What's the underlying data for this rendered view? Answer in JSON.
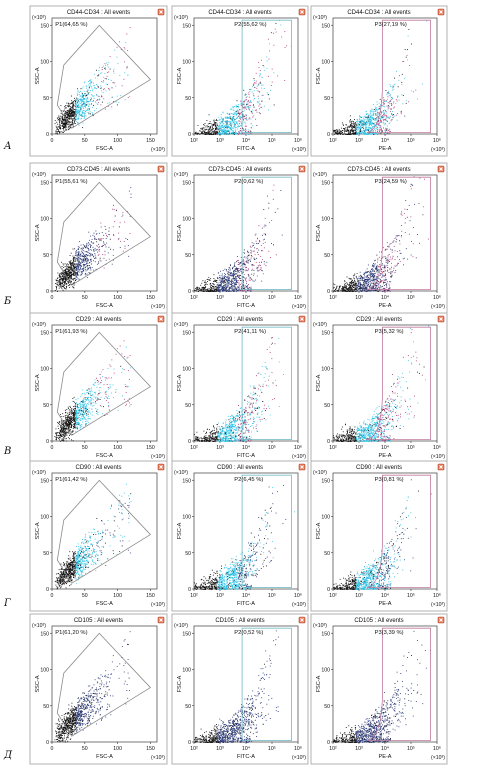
{
  "row_labels": [
    "А",
    "Б",
    "В",
    "Г",
    "Д"
  ],
  "close_icon": "close-icon",
  "colors": {
    "cyan": "#2fc4e8",
    "magenta": "#b23a78",
    "black": "#111111",
    "navy": "#2c3a7a",
    "gray": "#8c8c8c",
    "gate_cyan": "#6fb9c4",
    "gate_pink": "#c07a9c",
    "close_orange": "#e8795a"
  },
  "chart_data": [
    {
      "type": "scatter",
      "row": "А",
      "title": "CD44-CD34 : All events",
      "gate": "P1(64,65 %)",
      "xlabel": "FSC-A",
      "ylabel": "SSC-A",
      "x_exponent": "(×10³)",
      "y_exponent": "(×10³)",
      "xticks": [
        "0",
        "50",
        "100",
        "150"
      ],
      "yticks": [
        "0",
        "50",
        "100",
        "150"
      ],
      "xlim": [
        0,
        160
      ],
      "ylim": [
        0,
        160
      ],
      "scale": "linear",
      "gate_shape": "polygon",
      "scheme": "cyan_magenta"
    },
    {
      "type": "scatter",
      "row": "А",
      "title": "CD44-CD34 : All events",
      "gate": "P2(55,62 %)",
      "xlabel": "FITC-A",
      "ylabel": "FSC-A",
      "x_exponent": "(×10³)",
      "y_exponent": "(×10³)",
      "xticks": [
        "10²",
        "10³",
        "10⁴",
        "10⁵",
        "10⁶"
      ],
      "yticks": [
        "0",
        "50",
        "100",
        "150"
      ],
      "xlim": [
        2,
        6
      ],
      "ylim": [
        0,
        160
      ],
      "scale": "log",
      "gate_shape": "rect",
      "scheme": "cyan_magenta"
    },
    {
      "type": "scatter",
      "row": "А",
      "title": "CD44-CD34 : All events",
      "gate": "P3(27,19 %)",
      "xlabel": "PE-A",
      "ylabel": "FSC-A",
      "x_exponent": "(×10³)",
      "y_exponent": "(×10³)",
      "xticks": [
        "10²",
        "10³",
        "10⁴",
        "10⁵",
        "10⁶"
      ],
      "yticks": [
        "0",
        "50",
        "100",
        "150"
      ],
      "xlim": [
        2,
        6
      ],
      "ylim": [
        0,
        160
      ],
      "scale": "log",
      "gate_shape": "curve",
      "scheme": "cyan_magenta"
    },
    {
      "type": "scatter",
      "row": "Б",
      "title": "CD73-CD45 : All events",
      "gate": "P1(55,61 %)",
      "xlabel": "FSC-A",
      "ylabel": "SSC-A",
      "x_exponent": "(×10³)",
      "y_exponent": "(×10³)",
      "xticks": [
        "0",
        "50",
        "100",
        "150"
      ],
      "yticks": [
        "0",
        "50",
        "100",
        "150"
      ],
      "xlim": [
        0,
        160
      ],
      "ylim": [
        0,
        160
      ],
      "scale": "linear",
      "gate_shape": "polygon",
      "scheme": "magenta_navy"
    },
    {
      "type": "scatter",
      "row": "Б",
      "title": "CD73-CD45 : All events",
      "gate": "P2(0,62 %)",
      "xlabel": "FITC-A",
      "ylabel": "FSC-A",
      "x_exponent": "(×10³)",
      "y_exponent": "(×10³)",
      "xticks": [
        "10²",
        "10³",
        "10⁴",
        "10⁵",
        "10⁶"
      ],
      "yticks": [
        "0",
        "50",
        "100",
        "150"
      ],
      "xlim": [
        2,
        6
      ],
      "ylim": [
        0,
        160
      ],
      "scale": "log",
      "gate_shape": "rect",
      "scheme": "magenta_navy"
    },
    {
      "type": "scatter",
      "row": "Б",
      "title": "CD73-CD45 : All events",
      "gate": "P3(24,59 %)",
      "xlabel": "PE-A",
      "ylabel": "FSC-A",
      "x_exponent": "(×10³)",
      "y_exponent": "(×10³)",
      "xticks": [
        "10²",
        "10³",
        "10⁴",
        "10⁵",
        "10⁶"
      ],
      "yticks": [
        "0",
        "50",
        "100",
        "150"
      ],
      "xlim": [
        2,
        6
      ],
      "ylim": [
        0,
        160
      ],
      "scale": "log",
      "gate_shape": "curve",
      "scheme": "magenta_navy"
    },
    {
      "type": "scatter",
      "row": "В",
      "title": "CD29 : All events",
      "gate": "P1(61,93 %)",
      "xlabel": "FSC-A",
      "ylabel": "SSC-A",
      "x_exponent": "(×10³)",
      "y_exponent": "(×10³)",
      "xticks": [
        "0",
        "50",
        "100",
        "150"
      ],
      "yticks": [
        "0",
        "50",
        "100",
        "150"
      ],
      "xlim": [
        0,
        160
      ],
      "ylim": [
        0,
        160
      ],
      "scale": "linear",
      "gate_shape": "polygon",
      "scheme": "cyan_magenta"
    },
    {
      "type": "scatter",
      "row": "В",
      "title": "CD29 : All events",
      "gate": "P2(41,11 %)",
      "xlabel": "FITC-A",
      "ylabel": "FSC-A",
      "x_exponent": "(×10³)",
      "y_exponent": "(×10³)",
      "xticks": [
        "10²",
        "10³",
        "10⁴",
        "10⁵",
        "10⁶"
      ],
      "yticks": [
        "0",
        "50",
        "100",
        "150"
      ],
      "xlim": [
        2,
        6
      ],
      "ylim": [
        0,
        160
      ],
      "scale": "log",
      "gate_shape": "rect",
      "scheme": "cyan_magenta"
    },
    {
      "type": "scatter",
      "row": "В",
      "title": "CD29 : All events",
      "gate": "P3(5,32 %)",
      "xlabel": "PE-A",
      "ylabel": "FSC-A",
      "x_exponent": "(×10³)",
      "y_exponent": "(×10³)",
      "xticks": [
        "10²",
        "10³",
        "10⁴",
        "10⁵",
        "10⁶"
      ],
      "yticks": [
        "0",
        "50",
        "100",
        "150"
      ],
      "xlim": [
        2,
        6
      ],
      "ylim": [
        0,
        160
      ],
      "scale": "log",
      "gate_shape": "curve",
      "scheme": "cyan_magenta"
    },
    {
      "type": "scatter",
      "row": "Г",
      "title": "CD90 : All events",
      "gate": "P1(61,42 %)",
      "xlabel": "FSC-A",
      "ylabel": "SSC-A",
      "x_exponent": "(×10³)",
      "y_exponent": "(×10³)",
      "xticks": [
        "0",
        "50",
        "100",
        "150"
      ],
      "yticks": [
        "0",
        "50",
        "100",
        "150"
      ],
      "xlim": [
        0,
        160
      ],
      "ylim": [
        0,
        160
      ],
      "scale": "linear",
      "gate_shape": "polygon",
      "scheme": "cyan_navy"
    },
    {
      "type": "scatter",
      "row": "Г",
      "title": "CD90 : All events",
      "gate": "P2(6,45 %)",
      "xlabel": "FITC-A",
      "ylabel": "FSC-A",
      "x_exponent": "(×10³)",
      "y_exponent": "(×10³)",
      "xticks": [
        "10²",
        "10³",
        "10⁴",
        "10⁵",
        "10⁶"
      ],
      "yticks": [
        "0",
        "50",
        "100",
        "150"
      ],
      "xlim": [
        2,
        6
      ],
      "ylim": [
        0,
        160
      ],
      "scale": "log",
      "gate_shape": "rect",
      "scheme": "cyan_navy"
    },
    {
      "type": "scatter",
      "row": "Г",
      "title": "CD90 : All events",
      "gate": "P3(0,81 %)",
      "xlabel": "PE-A",
      "ylabel": "FSC-A",
      "x_exponent": "(×10³)",
      "y_exponent": "(×10³)",
      "xticks": [
        "10²",
        "10³",
        "10⁴",
        "10⁵",
        "10⁶"
      ],
      "yticks": [
        "0",
        "50",
        "100",
        "150"
      ],
      "xlim": [
        2,
        6
      ],
      "ylim": [
        0,
        160
      ],
      "scale": "log",
      "gate_shape": "curve",
      "scheme": "cyan_navy"
    },
    {
      "type": "scatter",
      "row": "Д",
      "title": "CD105 : All events",
      "gate": "P1(61,20 %)",
      "xlabel": "FSC-A",
      "ylabel": "SSC-A",
      "x_exponent": "(×10³)",
      "y_exponent": "(×10³)",
      "xticks": [
        "0",
        "50",
        "100",
        "150"
      ],
      "yticks": [
        "0",
        "50",
        "100",
        "150"
      ],
      "xlim": [
        0,
        160
      ],
      "ylim": [
        0,
        160
      ],
      "scale": "linear",
      "gate_shape": "polygon",
      "scheme": "navy_magenta"
    },
    {
      "type": "scatter",
      "row": "Д",
      "title": "CD105 : All events",
      "gate": "P2(0,52 %)",
      "xlabel": "FITC-A",
      "ylabel": "FSC-A",
      "x_exponent": "(×10³)",
      "y_exponent": "(×10³)",
      "xticks": [
        "10²",
        "10³",
        "10⁴",
        "10⁵",
        "10⁶"
      ],
      "yticks": [
        "0",
        "50",
        "100",
        "150"
      ],
      "xlim": [
        2,
        6
      ],
      "ylim": [
        0,
        160
      ],
      "scale": "log",
      "gate_shape": "rect",
      "scheme": "navy_magenta"
    },
    {
      "type": "scatter",
      "row": "Д",
      "title": "CD105 : All events",
      "gate": "P3(3,39 %)",
      "xlabel": "PE-A",
      "ylabel": "FSC-A",
      "x_exponent": "(×10³)",
      "y_exponent": "(×10³)",
      "xticks": [
        "10²",
        "10³",
        "10⁴",
        "10⁵",
        "10⁶"
      ],
      "yticks": [
        "0",
        "50",
        "100",
        "150"
      ],
      "xlim": [
        2,
        6
      ],
      "ylim": [
        0,
        160
      ],
      "scale": "log",
      "gate_shape": "curve",
      "scheme": "navy_magenta"
    }
  ]
}
